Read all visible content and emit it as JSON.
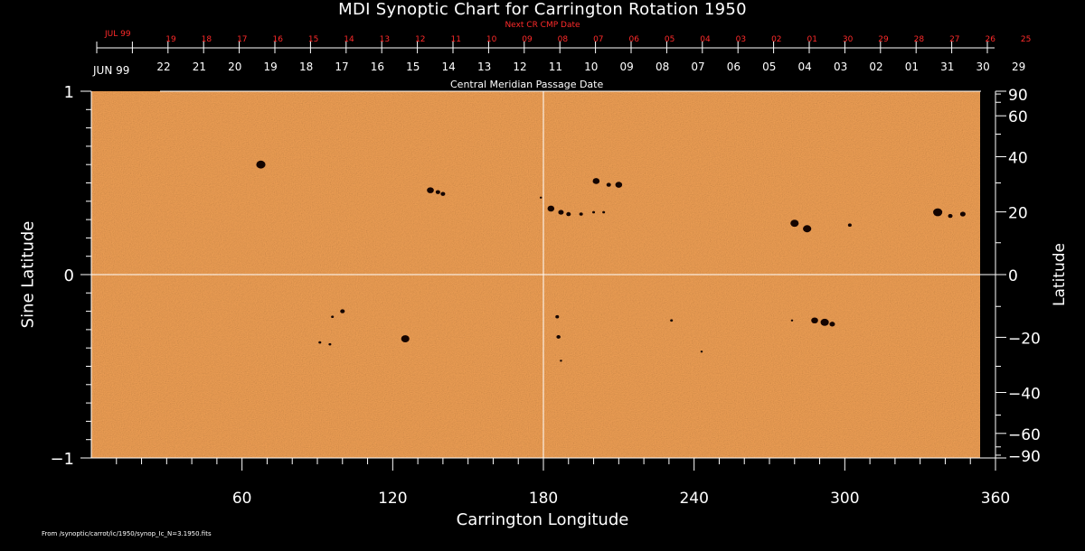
{
  "chart_data": {
    "type": "heatmap",
    "title": "MDI Synoptic Chart for Carrington Rotation 1950",
    "xlabel": "Carrington Longitude",
    "ylabel_left": "Sine Latitude",
    "ylabel_right": "Latitude",
    "xlim": [
      0,
      360
    ],
    "ylim": [
      -1,
      1
    ],
    "x_ticks": [
      60,
      120,
      180,
      240,
      300,
      360
    ],
    "x_tick_labels": [
      "60",
      "120",
      "180",
      "240",
      "300",
      "360"
    ],
    "y_ticks_left": [
      1,
      0,
      -1
    ],
    "y_tick_labels_left": [
      "1",
      "0",
      "−1"
    ],
    "y_ticks_right_deg": [
      90,
      60,
      40,
      20,
      0,
      -20,
      -40,
      -60,
      -90
    ],
    "y_tick_labels_right": [
      "90",
      "60",
      "40",
      "20",
      "0",
      "−20",
      "−40",
      "−60",
      "−90"
    ],
    "top_axis_label": "Central Meridian Passage Date",
    "top_axis_month": "JUN 99",
    "top_axis_dates": [
      "22",
      "21",
      "20",
      "19",
      "18",
      "17",
      "16",
      "15",
      "14",
      "13",
      "12",
      "11",
      "10",
      "09",
      "08",
      "07",
      "06",
      "05",
      "04",
      "03",
      "02",
      "01",
      "31",
      "30",
      "29"
    ],
    "next_axis_label": "Next CR CMP Date",
    "next_axis_month": "JUL 99",
    "next_axis_dates": [
      "19",
      "18",
      "17",
      "16",
      "15",
      "14",
      "13",
      "12",
      "11",
      "10",
      "09",
      "08",
      "07",
      "06",
      "05",
      "04",
      "03",
      "02",
      "01",
      "30",
      "29",
      "28",
      "27",
      "26",
      "25"
    ],
    "gridlines": {
      "vertical_at_longitude": 180,
      "horizontal_at_sine_latitude": 0
    },
    "background_color": "#f0a055",
    "sunspot_color": "#140400",
    "sunspots": [
      {
        "lon": 67.5,
        "sinlat": 0.6,
        "size": 2
      },
      {
        "lon": 135,
        "sinlat": 0.46,
        "size": 1.5
      },
      {
        "lon": 140,
        "sinlat": 0.44,
        "size": 1
      },
      {
        "lon": 138,
        "sinlat": 0.45,
        "size": 1
      },
      {
        "lon": 183,
        "sinlat": 0.36,
        "size": 1.5
      },
      {
        "lon": 187,
        "sinlat": 0.34,
        "size": 1.2
      },
      {
        "lon": 190,
        "sinlat": 0.33,
        "size": 1
      },
      {
        "lon": 195,
        "sinlat": 0.33,
        "size": 0.8
      },
      {
        "lon": 200,
        "sinlat": 0.34,
        "size": 0.6
      },
      {
        "lon": 204,
        "sinlat": 0.34,
        "size": 0.6
      },
      {
        "lon": 201,
        "sinlat": 0.51,
        "size": 1.5
      },
      {
        "lon": 206,
        "sinlat": 0.49,
        "size": 1
      },
      {
        "lon": 210,
        "sinlat": 0.49,
        "size": 1.5
      },
      {
        "lon": 179,
        "sinlat": 0.42,
        "size": 0.5
      },
      {
        "lon": 280,
        "sinlat": 0.28,
        "size": 1.8
      },
      {
        "lon": 285,
        "sinlat": 0.25,
        "size": 1.8
      },
      {
        "lon": 302,
        "sinlat": 0.27,
        "size": 0.8
      },
      {
        "lon": 337,
        "sinlat": 0.34,
        "size": 2
      },
      {
        "lon": 342,
        "sinlat": 0.32,
        "size": 1
      },
      {
        "lon": 347,
        "sinlat": 0.33,
        "size": 1.2
      },
      {
        "lon": 100,
        "sinlat": -0.2,
        "size": 1
      },
      {
        "lon": 96,
        "sinlat": -0.23,
        "size": 0.6
      },
      {
        "lon": 91,
        "sinlat": -0.37,
        "size": 0.6
      },
      {
        "lon": 95,
        "sinlat": -0.38,
        "size": 0.6
      },
      {
        "lon": 125,
        "sinlat": -0.35,
        "size": 1.8
      },
      {
        "lon": 185.5,
        "sinlat": -0.23,
        "size": 0.8
      },
      {
        "lon": 186,
        "sinlat": -0.34,
        "size": 0.9
      },
      {
        "lon": 187,
        "sinlat": -0.47,
        "size": 0.5
      },
      {
        "lon": 231,
        "sinlat": -0.25,
        "size": 0.6
      },
      {
        "lon": 243,
        "sinlat": -0.42,
        "size": 0.5
      },
      {
        "lon": 279,
        "sinlat": -0.25,
        "size": 0.5
      },
      {
        "lon": 288,
        "sinlat": -0.25,
        "size": 1.5
      },
      {
        "lon": 292,
        "sinlat": -0.26,
        "size": 1.8
      },
      {
        "lon": 295,
        "sinlat": -0.27,
        "size": 1.2
      }
    ],
    "source_note": "From /synoptic/carrot/ic/1950/synop_Ic_N=3.1950.fits"
  }
}
